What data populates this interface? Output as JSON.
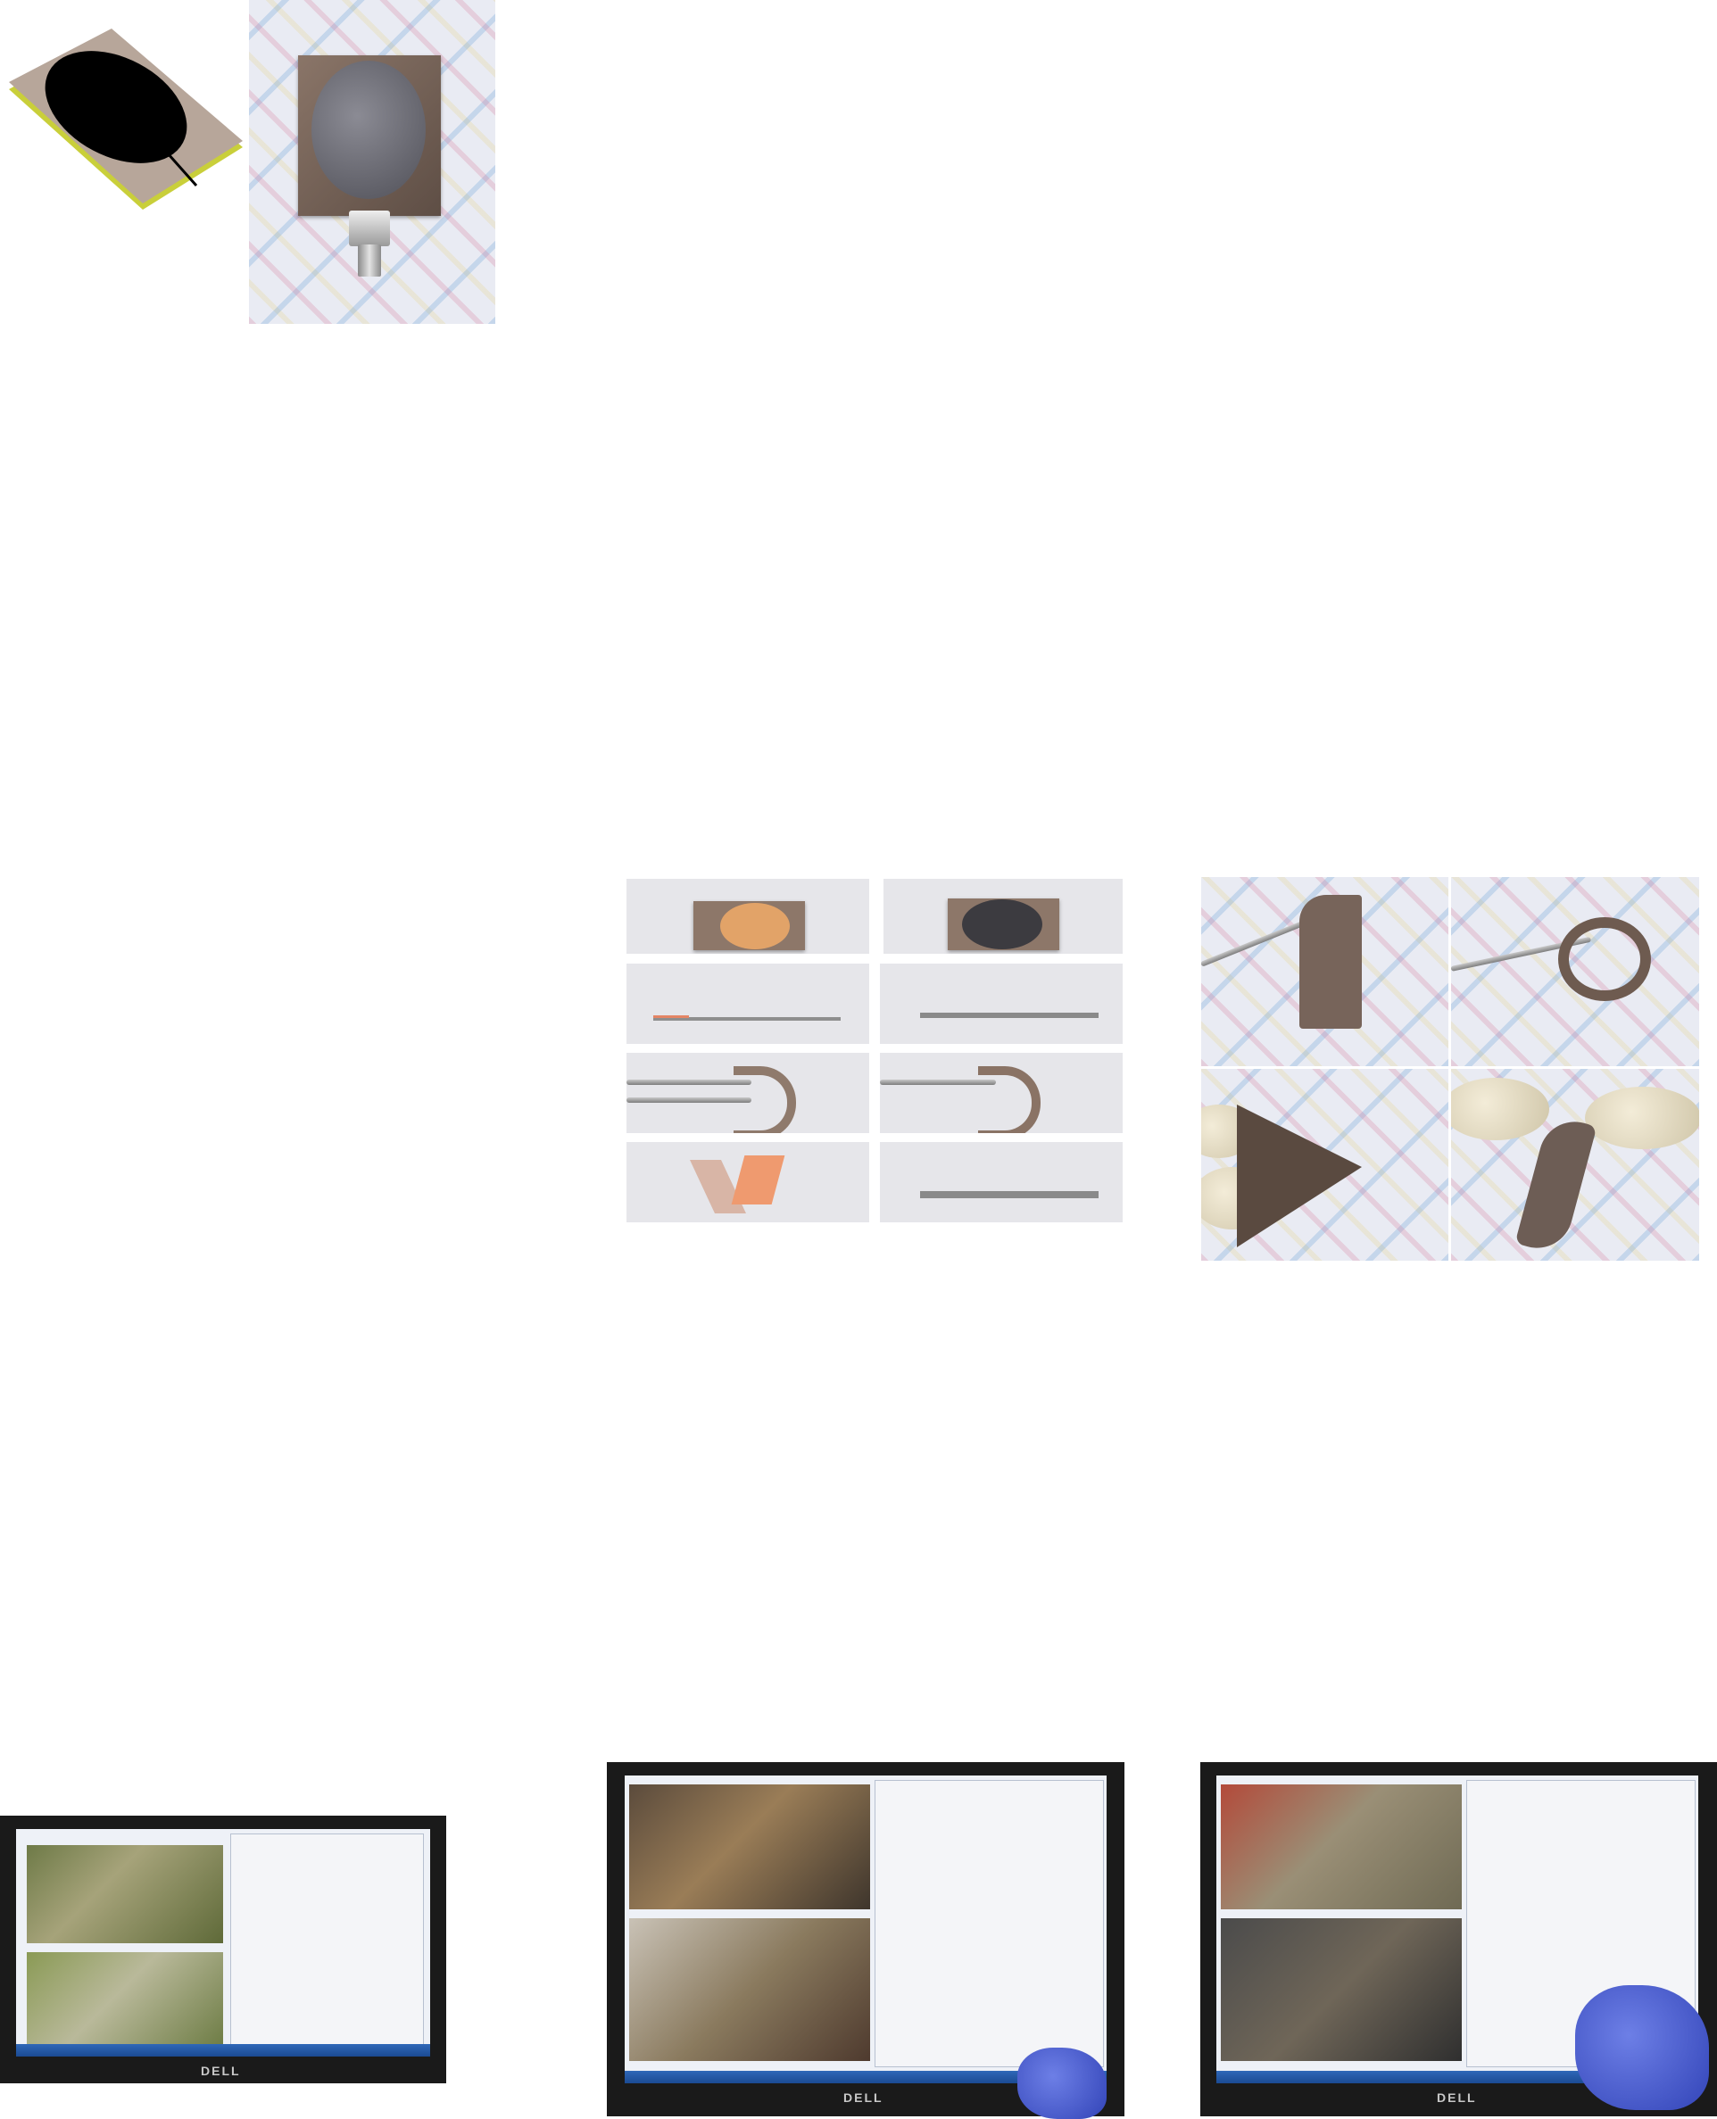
{
  "figure": {
    "row1": {
      "schematic": {
        "icon": "antenna-schematic-icon"
      },
      "photo": {
        "icon": "fabricated-antenna-photo-icon"
      }
    },
    "row2": {
      "bending_states": [
        {
          "icon": "flat-top-copper-photo-icon"
        },
        {
          "icon": "flat-top-dark-photo-icon"
        },
        {
          "icon": "flat-side-copper-photo-icon"
        },
        {
          "icon": "flat-side-dark-photo-icon"
        },
        {
          "icon": "bent-copper-photo-icon"
        },
        {
          "icon": "bent-dark-photo-icon"
        },
        {
          "icon": "folded-copper-photo-icon"
        },
        {
          "icon": "flat-dark-photo-icon"
        }
      ],
      "flexibility": [
        {
          "icon": "tweezer-fold-photo-icon"
        },
        {
          "icon": "tweezer-roll-photo-icon"
        },
        {
          "icon": "finger-fold-photo-icon"
        },
        {
          "icon": "finger-twist-photo-icon"
        }
      ]
    },
    "row3": {
      "monitors": [
        {
          "brand": "DELL",
          "icon": "monitor-video-test-icon"
        },
        {
          "brand": "DELL",
          "icon": "monitor-video-test-icon"
        },
        {
          "brand": "DELL",
          "icon": "monitor-video-test-icon"
        }
      ]
    }
  },
  "colors": {
    "substrate": "#b7a69a",
    "patch": "#000000",
    "ground": "#c9cf3a",
    "copper": "#e2a368",
    "screen": "#eef1f7"
  }
}
